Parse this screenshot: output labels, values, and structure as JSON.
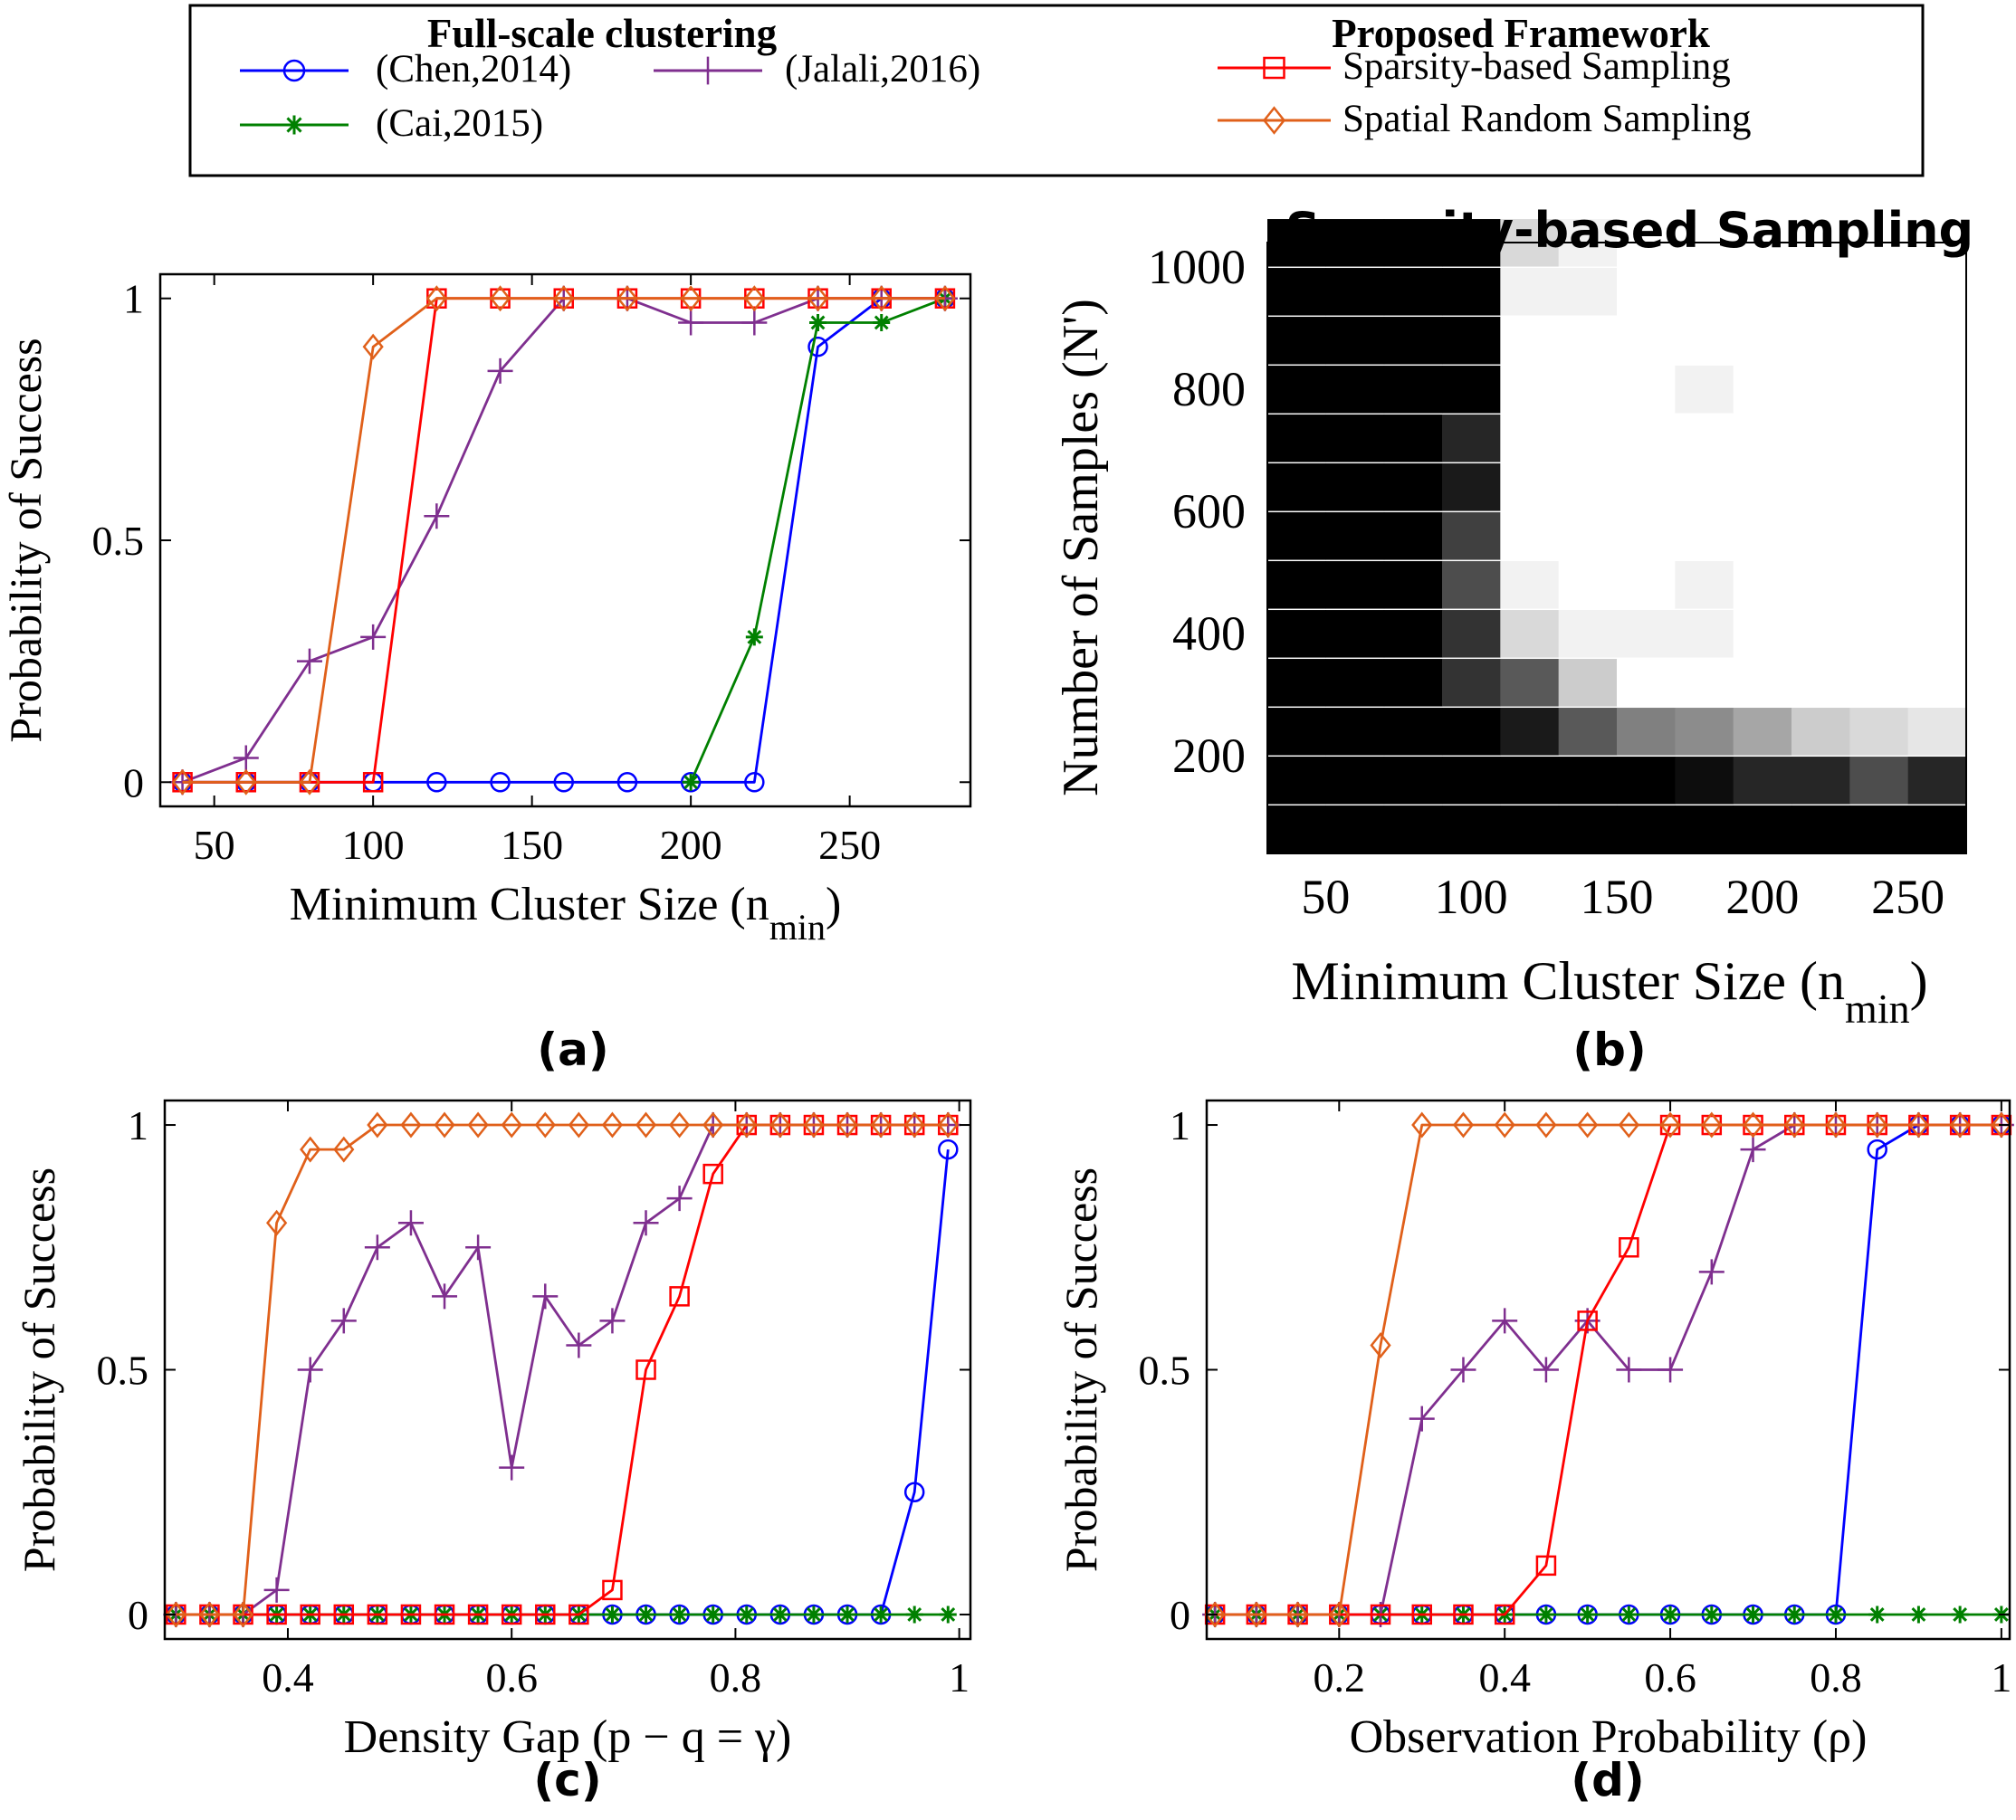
{
  "legend": {
    "group_left_title": "Full-scale clustering",
    "group_right_title": "Proposed Framework",
    "entries": [
      {
        "label": "(Chen,2014)",
        "marker": "circle",
        "color": "#0000ff"
      },
      {
        "label": "(Jalali,2016)",
        "marker": "plus",
        "color": "#7f2f8f"
      },
      {
        "label": "(Cai,2015)",
        "marker": "asterisk",
        "color": "#008000"
      },
      {
        "label": "Sparsity-based Sampling",
        "marker": "square",
        "color": "#ff0000"
      },
      {
        "label": "Spatial Random Sampling",
        "marker": "diamond",
        "color": "#e0601a"
      }
    ]
  },
  "chart_data": [
    {
      "panel": "(a)",
      "type": "line",
      "xlabel": "Minimum Cluster Size (n",
      "xlabel_sub": "min",
      "xlabel_tail": ")",
      "ylabel": "Probability of Success",
      "xlim": [
        33,
        288
      ],
      "ylim": [
        -0.05,
        1.05
      ],
      "xticks": [
        50,
        100,
        150,
        200,
        250
      ],
      "yticks": [
        0,
        0.5,
        1
      ],
      "ytick_labels": [
        "0",
        "0.5",
        "1"
      ],
      "series": [
        {
          "name": "(Chen,2014)",
          "color": "#0000ff",
          "marker": "circle",
          "x": [
            40,
            60,
            80,
            100,
            120,
            140,
            160,
            180,
            200,
            220,
            240,
            260,
            280
          ],
          "y": [
            0,
            0,
            0,
            0,
            0,
            0,
            0,
            0,
            0,
            0,
            0.9,
            1,
            1
          ]
        },
        {
          "name": "(Cai,2015)",
          "color": "#008000",
          "marker": "asterisk",
          "x": [
            200,
            220,
            240,
            260,
            280
          ],
          "y": [
            0,
            0.3,
            0.95,
            0.95,
            1
          ]
        },
        {
          "name": "(Jalali,2016)",
          "color": "#7f2f8f",
          "marker": "plus",
          "x": [
            40,
            60,
            80,
            100,
            120,
            140,
            160,
            180,
            200,
            220,
            240,
            260,
            280
          ],
          "y": [
            0,
            0.05,
            0.25,
            0.3,
            0.55,
            0.85,
            1,
            1,
            0.95,
            0.95,
            1,
            1,
            1
          ]
        },
        {
          "name": "Sparsity-based Sampling",
          "color": "#ff0000",
          "marker": "square",
          "x": [
            40,
            60,
            80,
            100,
            120,
            140,
            160,
            180,
            200,
            220,
            240,
            260,
            280
          ],
          "y": [
            0,
            0,
            0,
            0,
            1,
            1,
            1,
            1,
            1,
            1,
            1,
            1,
            1
          ]
        },
        {
          "name": "Spatial Random Sampling",
          "color": "#e0601a",
          "marker": "diamond",
          "x": [
            40,
            60,
            80,
            100,
            120,
            140,
            160,
            180,
            200,
            220,
            240,
            260,
            280
          ],
          "y": [
            0,
            0,
            0,
            0.9,
            1,
            1,
            1,
            1,
            1,
            1,
            1,
            1,
            1
          ]
        }
      ]
    },
    {
      "panel": "(b)",
      "type": "heatmap",
      "title": "Sparsity-based Sampling",
      "xlabel": "Minimum Cluster Size (n",
      "xlabel_sub": "min",
      "xlabel_tail": ")",
      "ylabel": "Number of Samples (N')",
      "xlim": [
        30,
        270
      ],
      "ylim": [
        40,
        1040
      ],
      "xticks": [
        50,
        100,
        150,
        200,
        250
      ],
      "yticks": [
        200,
        400,
        600,
        800,
        1000
      ],
      "x": [
        40,
        60,
        80,
        100,
        120,
        140,
        160,
        180,
        200,
        220,
        240,
        260
      ],
      "y": [
        80,
        160,
        240,
        320,
        400,
        480,
        560,
        640,
        720,
        800,
        880,
        960,
        1040
      ],
      "values": [
        [
          0,
          0,
          0,
          0,
          0,
          0,
          0,
          0,
          0,
          0,
          0,
          0
        ],
        [
          0,
          0,
          0,
          0,
          0,
          0,
          0,
          0.05,
          0.15,
          0.15,
          0.3,
          0.15
        ],
        [
          0,
          0,
          0,
          0,
          0.1,
          0.35,
          0.5,
          0.55,
          0.65,
          0.8,
          0.85,
          0.9
        ],
        [
          0,
          0,
          0,
          0.2,
          0.35,
          0.8,
          1,
          1,
          1,
          1,
          1,
          1
        ],
        [
          0,
          0,
          0,
          0.2,
          0.85,
          0.95,
          0.95,
          0.95,
          1,
          1,
          1,
          1
        ],
        [
          0,
          0,
          0,
          0.3,
          0.95,
          1,
          1,
          0.95,
          1,
          1,
          1,
          1
        ],
        [
          0,
          0,
          0,
          0.25,
          1,
          1,
          1,
          1,
          1,
          1,
          1,
          1
        ],
        [
          0,
          0,
          0,
          0.1,
          1,
          1,
          1,
          1,
          1,
          1,
          1,
          1
        ],
        [
          0,
          0,
          0,
          0.15,
          1,
          1,
          1,
          1,
          1,
          1,
          1,
          1
        ],
        [
          0,
          0,
          0,
          0,
          1,
          1,
          1,
          0.95,
          1,
          1,
          1,
          1
        ],
        [
          0,
          0,
          0,
          0,
          1,
          1,
          1,
          1,
          1,
          1,
          1,
          1
        ],
        [
          0,
          0,
          0,
          0,
          0.95,
          0.95,
          1,
          1,
          1,
          1,
          1,
          1
        ],
        [
          0,
          0,
          0,
          0,
          0.85,
          0.95,
          1,
          1,
          1,
          1,
          1,
          1
        ]
      ]
    },
    {
      "panel": "(c)",
      "type": "line",
      "xlabel": "Density Gap (p − q = γ)",
      "ylabel": "Probability of Success",
      "xlim": [
        0.29,
        1.01
      ],
      "ylim": [
        -0.05,
        1.05
      ],
      "xticks": [
        0.4,
        0.6,
        0.8,
        1
      ],
      "xtick_labels": [
        "0.4",
        "0.6",
        "0.8",
        "1"
      ],
      "yticks": [
        0,
        0.5,
        1
      ],
      "ytick_labels": [
        "0",
        "0.5",
        "1"
      ],
      "series": [
        {
          "name": "(Chen,2014)",
          "color": "#0000ff",
          "marker": "circle",
          "x": [
            0.3,
            0.33,
            0.36,
            0.39,
            0.42,
            0.45,
            0.48,
            0.51,
            0.54,
            0.57,
            0.6,
            0.63,
            0.66,
            0.69,
            0.72,
            0.75,
            0.78,
            0.81,
            0.84,
            0.87,
            0.9,
            0.93,
            0.96,
            0.99
          ],
          "y": [
            0,
            0,
            0,
            0,
            0,
            0,
            0,
            0,
            0,
            0,
            0,
            0,
            0,
            0,
            0,
            0,
            0,
            0,
            0,
            0,
            0,
            0,
            0.25,
            0.95
          ]
        },
        {
          "name": "(Cai,2015)",
          "color": "#008000",
          "marker": "asterisk",
          "x": [
            0.3,
            0.33,
            0.36,
            0.39,
            0.42,
            0.45,
            0.48,
            0.51,
            0.54,
            0.57,
            0.6,
            0.63,
            0.66,
            0.69,
            0.72,
            0.75,
            0.78,
            0.81,
            0.84,
            0.87,
            0.9,
            0.93,
            0.96,
            0.99
          ],
          "y": [
            0,
            0,
            0,
            0,
            0,
            0,
            0,
            0,
            0,
            0,
            0,
            0,
            0,
            0,
            0,
            0,
            0,
            0,
            0,
            0,
            0,
            0,
            0,
            0
          ]
        },
        {
          "name": "(Jalali,2016)",
          "color": "#7f2f8f",
          "marker": "plus",
          "x": [
            0.3,
            0.33,
            0.36,
            0.39,
            0.42,
            0.45,
            0.48,
            0.51,
            0.54,
            0.57,
            0.6,
            0.63,
            0.66,
            0.69,
            0.72,
            0.75,
            0.78,
            0.81,
            0.84,
            0.87,
            0.9,
            0.93,
            0.96,
            0.99
          ],
          "y": [
            0,
            0,
            0,
            0.05,
            0.5,
            0.6,
            0.75,
            0.8,
            0.65,
            0.75,
            0.3,
            0.65,
            0.55,
            0.6,
            0.8,
            0.85,
            1,
            1,
            1,
            1,
            1,
            1,
            1,
            1
          ]
        },
        {
          "name": "Sparsity-based Sampling",
          "color": "#ff0000",
          "marker": "square",
          "x": [
            0.3,
            0.33,
            0.36,
            0.39,
            0.42,
            0.45,
            0.48,
            0.51,
            0.54,
            0.57,
            0.6,
            0.63,
            0.66,
            0.69,
            0.72,
            0.75,
            0.78,
            0.81,
            0.84,
            0.87,
            0.9,
            0.93,
            0.96,
            0.99
          ],
          "y": [
            0,
            0,
            0,
            0,
            0,
            0,
            0,
            0,
            0,
            0,
            0,
            0,
            0,
            0.05,
            0.5,
            0.65,
            0.9,
            1,
            1,
            1,
            1,
            1,
            1,
            1
          ]
        },
        {
          "name": "Spatial Random Sampling",
          "color": "#e0601a",
          "marker": "diamond",
          "x": [
            0.3,
            0.33,
            0.36,
            0.39,
            0.42,
            0.45,
            0.48,
            0.51,
            0.54,
            0.57,
            0.6,
            0.63,
            0.66,
            0.69,
            0.72,
            0.75,
            0.78,
            0.81,
            0.84,
            0.87,
            0.9,
            0.93,
            0.96,
            0.99
          ],
          "y": [
            0,
            0,
            0,
            0.8,
            0.95,
            0.95,
            1,
            1,
            1,
            1,
            1,
            1,
            1,
            1,
            1,
            1,
            1,
            1,
            1,
            1,
            1,
            1,
            1,
            1
          ]
        }
      ]
    },
    {
      "panel": "(d)",
      "type": "line",
      "xlabel": "Observation Probability (ρ)",
      "ylabel": "Probability of Success",
      "xlim": [
        0.04,
        1.01
      ],
      "ylim": [
        -0.05,
        1.05
      ],
      "xticks": [
        0.2,
        0.4,
        0.6,
        0.8,
        1
      ],
      "xtick_labels": [
        "0.2",
        "0.4",
        "0.6",
        "0.8",
        "1"
      ],
      "yticks": [
        0,
        0.5,
        1
      ],
      "ytick_labels": [
        "0",
        "0.5",
        "1"
      ],
      "series": [
        {
          "name": "(Chen,2014)",
          "color": "#0000ff",
          "marker": "circle",
          "x": [
            0.05,
            0.1,
            0.15,
            0.2,
            0.25,
            0.3,
            0.35,
            0.4,
            0.45,
            0.5,
            0.55,
            0.6,
            0.65,
            0.7,
            0.75,
            0.8,
            0.85,
            0.9,
            0.95,
            1
          ],
          "y": [
            0,
            0,
            0,
            0,
            0,
            0,
            0,
            0,
            0,
            0,
            0,
            0,
            0,
            0,
            0,
            0,
            0.95,
            1,
            1,
            1
          ]
        },
        {
          "name": "(Cai,2015)",
          "color": "#008000",
          "marker": "asterisk",
          "x": [
            0.05,
            0.1,
            0.15,
            0.2,
            0.25,
            0.3,
            0.35,
            0.4,
            0.45,
            0.5,
            0.55,
            0.6,
            0.65,
            0.7,
            0.75,
            0.8,
            0.85,
            0.9,
            0.95,
            1
          ],
          "y": [
            0,
            0,
            0,
            0,
            0,
            0,
            0,
            0,
            0,
            0,
            0,
            0,
            0,
            0,
            0,
            0,
            0,
            0,
            0,
            0
          ]
        },
        {
          "name": "(Jalali,2016)",
          "color": "#7f2f8f",
          "marker": "plus",
          "x": [
            0.05,
            0.1,
            0.15,
            0.2,
            0.25,
            0.3,
            0.35,
            0.4,
            0.45,
            0.5,
            0.55,
            0.6,
            0.65,
            0.7,
            0.75,
            0.8,
            0.85,
            0.9,
            0.95,
            1
          ],
          "y": [
            0,
            0,
            0,
            0,
            0,
            0.4,
            0.5,
            0.6,
            0.5,
            0.6,
            0.5,
            0.5,
            0.7,
            0.95,
            1,
            1,
            1,
            1,
            1,
            1
          ]
        },
        {
          "name": "Sparsity-based Sampling",
          "color": "#ff0000",
          "marker": "square",
          "x": [
            0.05,
            0.1,
            0.15,
            0.2,
            0.25,
            0.3,
            0.35,
            0.4,
            0.45,
            0.5,
            0.55,
            0.6,
            0.65,
            0.7,
            0.75,
            0.8,
            0.85,
            0.9,
            0.95,
            1
          ],
          "y": [
            0,
            0,
            0,
            0,
            0,
            0,
            0,
            0,
            0.1,
            0.6,
            0.75,
            1,
            1,
            1,
            1,
            1,
            1,
            1,
            1,
            1
          ]
        },
        {
          "name": "Spatial Random Sampling",
          "color": "#e0601a",
          "marker": "diamond",
          "x": [
            0.05,
            0.1,
            0.15,
            0.2,
            0.25,
            0.3,
            0.35,
            0.4,
            0.45,
            0.5,
            0.55,
            0.6,
            0.65,
            0.7,
            0.75,
            0.8,
            0.85,
            0.9,
            0.95,
            1
          ],
          "y": [
            0,
            0,
            0,
            0,
            0.55,
            1,
            1,
            1,
            1,
            1,
            1,
            1,
            1,
            1,
            1,
            1,
            1,
            1,
            1,
            1
          ]
        }
      ]
    }
  ]
}
